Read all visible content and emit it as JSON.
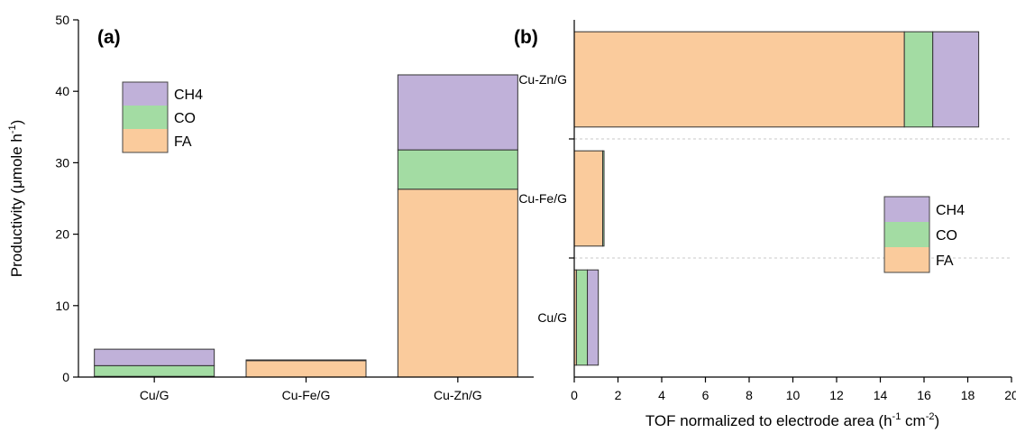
{
  "colors": {
    "CH4": "#c0b1d9",
    "CO": "#a3dca3",
    "FA": "#facb9c"
  },
  "chart_data": [
    {
      "type": "bar",
      "stacked": true,
      "orientation": "vertical",
      "panel_label": "(a)",
      "ylabel_main": "Productivity (μmole h",
      "ylabel_sup": "-1",
      "ylabel_end": ")",
      "xlabel": "",
      "ylim": [
        0,
        50
      ],
      "yticks": [
        "0",
        "10",
        "20",
        "30",
        "40",
        "50"
      ],
      "categories": [
        "Cu/G",
        "Cu-Fe/G",
        "Cu-Zn/G"
      ],
      "series": [
        {
          "name": "FA",
          "values": [
            0.1,
            2.3,
            26.3
          ]
        },
        {
          "name": "CO",
          "values": [
            1.5,
            0.1,
            5.5
          ]
        },
        {
          "name": "CH4",
          "values": [
            2.3,
            0.0,
            10.5
          ]
        }
      ],
      "legend": {
        "position": "top-left",
        "entries": [
          "CH4",
          "CO",
          "FA"
        ]
      }
    },
    {
      "type": "bar",
      "stacked": true,
      "orientation": "horizontal",
      "panel_label": "(b)",
      "xlabel_main": "TOF normalized to electrode area (h",
      "xlabel_sup1": "-1",
      "xlabel_mid": " cm",
      "xlabel_sup2": "-2",
      "xlabel_end": ")",
      "ylabel": "",
      "xlim": [
        0,
        20
      ],
      "xticks": [
        "0",
        "2",
        "4",
        "6",
        "8",
        "10",
        "12",
        "14",
        "16",
        "18",
        "20"
      ],
      "categories": [
        "Cu/G",
        "Cu-Fe/G",
        "Cu-Zn/G"
      ],
      "series": [
        {
          "name": "FA",
          "values": [
            0.1,
            1.3,
            15.1
          ]
        },
        {
          "name": "CO",
          "values": [
            0.5,
            0.05,
            1.3
          ]
        },
        {
          "name": "CH4",
          "values": [
            0.5,
            0.0,
            2.1
          ]
        }
      ],
      "legend": {
        "position": "right",
        "entries": [
          "CH4",
          "CO",
          "FA"
        ]
      }
    }
  ]
}
